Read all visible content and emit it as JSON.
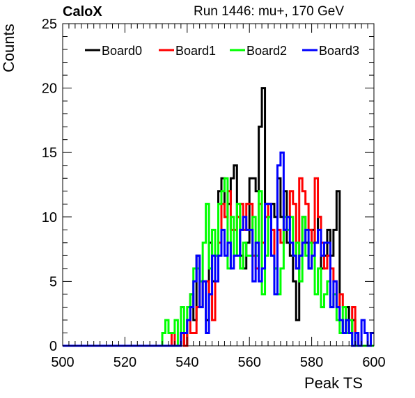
{
  "header": {
    "left_title": "CaloX",
    "right_title": "Run 1446: mu+, 170 GeV"
  },
  "chart_data": {
    "type": "histogram",
    "xlabel": "Peak TS",
    "ylabel": "Counts",
    "xlim": [
      500,
      600
    ],
    "ylim": [
      0,
      25
    ],
    "x_ticks": [
      500,
      520,
      540,
      560,
      580,
      600
    ],
    "y_ticks": [
      0,
      5,
      10,
      15,
      20,
      25
    ],
    "bin_width": 1,
    "grid": false,
    "legend_position": "top",
    "series": [
      {
        "name": "Board0",
        "color": "#000000",
        "bins": [
          [
            538,
            1
          ],
          [
            539,
            0
          ],
          [
            540,
            2
          ],
          [
            541,
            4
          ],
          [
            542,
            2
          ],
          [
            543,
            7
          ],
          [
            544,
            3
          ],
          [
            545,
            5
          ],
          [
            546,
            2
          ],
          [
            547,
            8
          ],
          [
            548,
            5
          ],
          [
            549,
            7
          ],
          [
            550,
            12
          ],
          [
            551,
            13
          ],
          [
            552,
            10
          ],
          [
            553,
            11
          ],
          [
            554,
            13
          ],
          [
            555,
            14
          ],
          [
            556,
            10
          ],
          [
            557,
            7
          ],
          [
            558,
            6
          ],
          [
            559,
            8
          ],
          [
            560,
            13
          ],
          [
            561,
            13
          ],
          [
            562,
            12
          ],
          [
            563,
            17
          ],
          [
            564,
            20
          ],
          [
            565,
            11
          ],
          [
            566,
            10
          ],
          [
            567,
            11
          ],
          [
            568,
            10
          ],
          [
            569,
            13
          ],
          [
            570,
            10
          ],
          [
            571,
            12
          ],
          [
            572,
            8
          ],
          [
            573,
            7
          ],
          [
            574,
            5
          ],
          [
            575,
            2
          ],
          [
            576,
            7
          ],
          [
            577,
            10
          ],
          [
            578,
            8
          ],
          [
            579,
            6
          ],
          [
            580,
            9
          ],
          [
            581,
            8
          ],
          [
            582,
            10
          ],
          [
            583,
            6
          ],
          [
            584,
            7
          ],
          [
            585,
            9
          ],
          [
            586,
            7
          ],
          [
            587,
            9
          ],
          [
            588,
            12
          ],
          [
            589,
            2
          ],
          [
            590,
            1
          ],
          [
            591,
            3
          ],
          [
            592,
            1
          ],
          [
            593,
            2
          ]
        ]
      },
      {
        "name": "Board1",
        "color": "#ff0000",
        "bins": [
          [
            535,
            1
          ],
          [
            536,
            0
          ],
          [
            537,
            0
          ],
          [
            538,
            1
          ],
          [
            539,
            0
          ],
          [
            540,
            2
          ],
          [
            541,
            1
          ],
          [
            542,
            1
          ],
          [
            543,
            3
          ],
          [
            544,
            5
          ],
          [
            545,
            5
          ],
          [
            546,
            5
          ],
          [
            547,
            4
          ],
          [
            548,
            2
          ],
          [
            549,
            5
          ],
          [
            550,
            8
          ],
          [
            551,
            11
          ],
          [
            552,
            10
          ],
          [
            553,
            12
          ],
          [
            554,
            9
          ],
          [
            555,
            9
          ],
          [
            556,
            10
          ],
          [
            557,
            11
          ],
          [
            558,
            9
          ],
          [
            559,
            11
          ],
          [
            560,
            11
          ],
          [
            561,
            7
          ],
          [
            562,
            6
          ],
          [
            563,
            11
          ],
          [
            564,
            8
          ],
          [
            565,
            10
          ],
          [
            566,
            11
          ],
          [
            567,
            9
          ],
          [
            568,
            6
          ],
          [
            569,
            9
          ],
          [
            570,
            8
          ],
          [
            571,
            9
          ],
          [
            572,
            10
          ],
          [
            573,
            12
          ],
          [
            574,
            11
          ],
          [
            575,
            6
          ],
          [
            576,
            13
          ],
          [
            577,
            12
          ],
          [
            578,
            11
          ],
          [
            579,
            9
          ],
          [
            580,
            8
          ],
          [
            581,
            13
          ],
          [
            582,
            10
          ],
          [
            583,
            8
          ],
          [
            584,
            6
          ],
          [
            585,
            7
          ],
          [
            586,
            6
          ],
          [
            587,
            5
          ],
          [
            588,
            3
          ],
          [
            589,
            4
          ],
          [
            590,
            3
          ],
          [
            591,
            2
          ],
          [
            592,
            1
          ],
          [
            593,
            3
          ],
          [
            594,
            1
          ]
        ]
      },
      {
        "name": "Board2",
        "color": "#00ff00",
        "bins": [
          [
            532,
            1
          ],
          [
            533,
            2
          ],
          [
            534,
            1
          ],
          [
            535,
            1
          ],
          [
            536,
            2
          ],
          [
            537,
            0
          ],
          [
            538,
            3
          ],
          [
            539,
            1
          ],
          [
            540,
            3
          ],
          [
            541,
            4
          ],
          [
            542,
            6
          ],
          [
            543,
            6
          ],
          [
            544,
            5
          ],
          [
            545,
            8
          ],
          [
            546,
            11
          ],
          [
            547,
            6
          ],
          [
            548,
            9
          ],
          [
            549,
            7
          ],
          [
            550,
            11
          ],
          [
            551,
            12
          ],
          [
            552,
            13
          ],
          [
            553,
            6
          ],
          [
            554,
            10
          ],
          [
            555,
            7
          ],
          [
            556,
            11
          ],
          [
            557,
            6
          ],
          [
            558,
            8
          ],
          [
            559,
            7
          ],
          [
            560,
            7
          ],
          [
            561,
            10
          ],
          [
            562,
            7
          ],
          [
            563,
            12
          ],
          [
            564,
            4
          ],
          [
            565,
            7
          ],
          [
            566,
            10
          ],
          [
            567,
            7
          ],
          [
            568,
            6
          ],
          [
            569,
            4
          ],
          [
            570,
            6
          ],
          [
            571,
            10
          ],
          [
            572,
            9
          ],
          [
            573,
            10
          ],
          [
            574,
            7
          ],
          [
            575,
            8
          ],
          [
            576,
            5
          ],
          [
            577,
            10
          ],
          [
            578,
            7
          ],
          [
            579,
            8
          ],
          [
            580,
            7
          ],
          [
            581,
            4
          ],
          [
            582,
            6
          ],
          [
            583,
            3
          ],
          [
            584,
            4
          ],
          [
            585,
            5
          ],
          [
            586,
            3
          ],
          [
            587,
            4
          ],
          [
            588,
            2
          ],
          [
            589,
            1
          ],
          [
            590,
            3
          ],
          [
            591,
            1
          ],
          [
            592,
            2
          ]
        ]
      },
      {
        "name": "Board3",
        "color": "#0000ff",
        "bins": [
          [
            538,
            1
          ],
          [
            539,
            1
          ],
          [
            540,
            2
          ],
          [
            541,
            3
          ],
          [
            542,
            5
          ],
          [
            543,
            7
          ],
          [
            544,
            3
          ],
          [
            545,
            5
          ],
          [
            546,
            1
          ],
          [
            547,
            4
          ],
          [
            548,
            7
          ],
          [
            549,
            5
          ],
          [
            550,
            7
          ],
          [
            551,
            9
          ],
          [
            552,
            7
          ],
          [
            553,
            8
          ],
          [
            554,
            6
          ],
          [
            555,
            7
          ],
          [
            556,
            7
          ],
          [
            557,
            9
          ],
          [
            558,
            10
          ],
          [
            559,
            9
          ],
          [
            560,
            9
          ],
          [
            561,
            5
          ],
          [
            562,
            8
          ],
          [
            563,
            5
          ],
          [
            564,
            6
          ],
          [
            565,
            11
          ],
          [
            566,
            11
          ],
          [
            567,
            7
          ],
          [
            568,
            4
          ],
          [
            569,
            14
          ],
          [
            570,
            15
          ],
          [
            571,
            9
          ],
          [
            572,
            10
          ],
          [
            573,
            8
          ],
          [
            574,
            7
          ],
          [
            575,
            6
          ],
          [
            576,
            7
          ],
          [
            577,
            8
          ],
          [
            578,
            9
          ],
          [
            579,
            6
          ],
          [
            580,
            7
          ],
          [
            581,
            8
          ],
          [
            582,
            9
          ],
          [
            583,
            7
          ],
          [
            584,
            8
          ],
          [
            585,
            8
          ],
          [
            586,
            3
          ],
          [
            587,
            5
          ],
          [
            588,
            3
          ],
          [
            589,
            2
          ],
          [
            590,
            1
          ],
          [
            591,
            2
          ],
          [
            592,
            1
          ],
          [
            593,
            0
          ],
          [
            594,
            1
          ],
          [
            595,
            0
          ],
          [
            596,
            2
          ],
          [
            597,
            1
          ],
          [
            598,
            0
          ],
          [
            599,
            1
          ]
        ]
      }
    ]
  }
}
